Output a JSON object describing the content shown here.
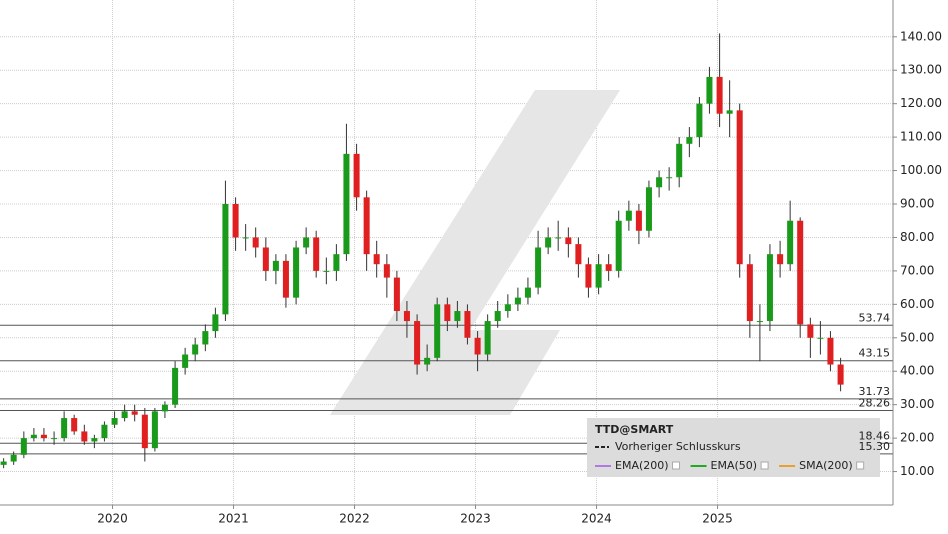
{
  "chart_data": {
    "type": "candlestick",
    "symbol": "TTD@SMART",
    "previous_close_label": "Vorheriger Schlusskurs",
    "indicators": [
      {
        "name": "EMA(200)",
        "color": "#b07be0"
      },
      {
        "name": "EMA(50)",
        "color": "#22aa22"
      },
      {
        "name": "SMA(200)",
        "color": "#e8a030"
      }
    ],
    "up_color": "#1a9a1a",
    "down_color": "#e02020",
    "x": [
      2019.1,
      2019.183,
      2019.267,
      2019.35,
      2019.433,
      2019.517,
      2019.6,
      2019.683,
      2019.767,
      2019.85,
      2019.933,
      2020.017,
      2020.1,
      2020.183,
      2020.267,
      2020.35,
      2020.433,
      2020.517,
      2020.6,
      2020.683,
      2020.767,
      2020.85,
      2020.933,
      2021.017,
      2021.1,
      2021.183,
      2021.267,
      2021.35,
      2021.433,
      2021.517,
      2021.6,
      2021.683,
      2021.767,
      2021.85,
      2021.933,
      2022.017,
      2022.1,
      2022.183,
      2022.267,
      2022.35,
      2022.433,
      2022.517,
      2022.6,
      2022.683,
      2022.767,
      2022.85,
      2022.933,
      2023.017,
      2023.1,
      2023.183,
      2023.267,
      2023.35,
      2023.433,
      2023.517,
      2023.6,
      2023.683,
      2023.767,
      2023.85,
      2023.933,
      2024.017,
      2024.1,
      2024.183,
      2024.267,
      2024.35,
      2024.433,
      2024.517,
      2024.6,
      2024.683,
      2024.767,
      2024.85,
      2024.933,
      2025.017,
      2025.1,
      2025.183,
      2025.267,
      2025.35,
      2025.433,
      2025.517,
      2025.6,
      2025.683,
      2025.767,
      2025.85,
      2025.933,
      2026.017
    ],
    "open": [
      12,
      13,
      15,
      20,
      21,
      20,
      20,
      26,
      22,
      19,
      20,
      24,
      26,
      28,
      27,
      17,
      28,
      30,
      41,
      45,
      48,
      52,
      57,
      90,
      80,
      80,
      77,
      70,
      73,
      62,
      77,
      80,
      70,
      70,
      75,
      105,
      92,
      75,
      72,
      68,
      58,
      55,
      42,
      44,
      60,
      55,
      58,
      50,
      45,
      55,
      58,
      60,
      62,
      65,
      77,
      80,
      80,
      78,
      72,
      65,
      72,
      70,
      85,
      88,
      82,
      95,
      98,
      98,
      108,
      110,
      120,
      128,
      117,
      118,
      72,
      55,
      55,
      75,
      72,
      85,
      54,
      50,
      50,
      42
    ],
    "high": [
      14,
      16,
      22,
      23,
      23,
      22,
      28,
      27,
      24,
      21,
      25,
      28,
      30,
      30,
      29,
      29,
      31,
      43,
      47,
      50,
      54,
      59,
      97,
      92,
      84,
      83,
      80,
      75,
      75,
      79,
      83,
      82,
      74,
      78,
      114,
      108,
      94,
      79,
      75,
      70,
      61,
      57,
      48,
      62,
      62,
      61,
      60,
      52,
      57,
      61,
      63,
      65,
      68,
      82,
      83,
      85,
      83,
      80,
      74,
      75,
      75,
      88,
      91,
      90,
      97,
      100,
      101,
      110,
      113,
      122,
      131,
      141,
      127,
      120,
      75,
      60,
      78,
      79,
      91,
      86,
      56,
      55,
      52,
      44
    ],
    "low": [
      11,
      12,
      14,
      19,
      19,
      18,
      19,
      21,
      18,
      17,
      19,
      23,
      25,
      25,
      13,
      16,
      26,
      29,
      39,
      43,
      46,
      50,
      55,
      76,
      76,
      74,
      67,
      66,
      59,
      60,
      75,
      68,
      66,
      67,
      73,
      88,
      70,
      68,
      62,
      55,
      50,
      39,
      40,
      43,
      52,
      53,
      48,
      40,
      43,
      53,
      56,
      58,
      60,
      63,
      75,
      76,
      74,
      68,
      62,
      63,
      67,
      68,
      82,
      78,
      80,
      92,
      94,
      95,
      104,
      107,
      117,
      113,
      110,
      68,
      50,
      43,
      52,
      68,
      70,
      50,
      44,
      45,
      40,
      34
    ],
    "close": [
      13,
      15,
      20,
      21,
      20,
      20,
      26,
      22,
      19,
      20,
      24,
      26,
      28,
      27,
      17,
      28,
      30,
      41,
      45,
      48,
      52,
      57,
      90,
      80,
      80,
      77,
      70,
      73,
      62,
      77,
      80,
      70,
      70,
      75,
      105,
      92,
      75,
      72,
      68,
      58,
      55,
      42,
      44,
      60,
      55,
      58,
      50,
      45,
      55,
      58,
      60,
      62,
      65,
      77,
      80,
      80,
      78,
      72,
      65,
      72,
      70,
      85,
      88,
      82,
      95,
      98,
      98,
      108,
      110,
      120,
      128,
      117,
      118,
      72,
      55,
      55,
      75,
      72,
      85,
      54,
      50,
      50,
      42,
      36
    ],
    "levels": [
      53.74,
      43.15,
      31.73,
      28.26,
      18.46,
      {
        "value": 15.3,
        "label": "15.30"
      }
    ],
    "xlim": [
      2019.07,
      2026.45
    ],
    "xticks": [
      2020,
      2021,
      2022,
      2023,
      2024,
      2025
    ],
    "ylim": [
      0,
      151
    ],
    "yticks": [
      {
        "value": 10,
        "label": "10.00"
      },
      {
        "value": 20,
        "label": "20.00"
      },
      {
        "value": 30,
        "label": "30.00"
      },
      {
        "value": 40,
        "label": "40.00"
      },
      {
        "value": 50,
        "label": "50.00"
      },
      {
        "value": 60,
        "label": "60.00"
      },
      {
        "value": 70,
        "label": "70.00"
      },
      {
        "value": 80,
        "label": "80.00"
      },
      {
        "value": 90,
        "label": "90.00"
      },
      {
        "value": 100,
        "label": "100.00"
      },
      {
        "value": 110,
        "label": "110.00"
      },
      {
        "value": 120,
        "label": "120.00"
      },
      {
        "value": 130,
        "label": "130.00"
      },
      {
        "value": 140,
        "label": "140.00"
      }
    ],
    "grid": true
  }
}
